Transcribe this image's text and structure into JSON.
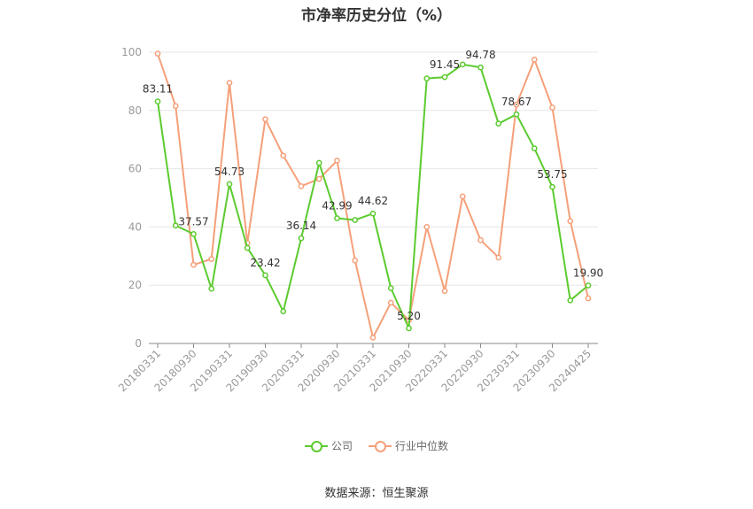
{
  "chart_data": {
    "type": "line",
    "title": "市净率历史分位（%）",
    "ylim": [
      0,
      100
    ],
    "yticks": [
      0,
      20,
      40,
      60,
      80,
      100
    ],
    "xtick_labels": [
      "20180331",
      "20180930",
      "20190331",
      "20190930",
      "20200331",
      "20200930",
      "20210331",
      "20210930",
      "20220331",
      "20220930",
      "20230331",
      "20230930",
      "20240425"
    ],
    "x": [
      "20180331",
      "20180630",
      "20180930",
      "20181231",
      "20190331",
      "20190630",
      "20190930",
      "20191231",
      "20200331",
      "20200630",
      "20200930",
      "20201231",
      "20210331",
      "20210630",
      "20210930",
      "20211231",
      "20220331",
      "20220630",
      "20220930",
      "20221231",
      "20230331",
      "20230630",
      "20230930",
      "20231231",
      "20240425"
    ],
    "series": [
      {
        "name": "公司",
        "color": "#5ccb2f",
        "values": [
          83.11,
          40.5,
          37.57,
          18.8,
          54.73,
          32.8,
          23.42,
          11.0,
          36.14,
          62.0,
          42.99,
          42.4,
          44.62,
          19.0,
          5.2,
          91.0,
          91.45,
          95.8,
          94.78,
          75.5,
          78.67,
          67.0,
          53.75,
          14.8,
          19.9
        ],
        "labels": {
          "0": "83.11",
          "2": "37.57",
          "4": "54.73",
          "6": "23.42",
          "8": "36.14",
          "10": "42.99",
          "12": "44.62",
          "14": "5.20",
          "16": "91.45",
          "18": "94.78",
          "20": "78.67",
          "22": "53.75",
          "24": "19.90"
        }
      },
      {
        "name": "行业中位数",
        "color": "#f5a07a",
        "values": [
          99.5,
          81.5,
          27.0,
          29.0,
          89.5,
          34.5,
          77.0,
          64.5,
          54.0,
          56.5,
          62.8,
          28.5,
          2.0,
          14.0,
          8.0,
          40.0,
          18.0,
          50.5,
          35.5,
          29.5,
          82.0,
          97.5,
          81.0,
          42.0,
          15.5
        ],
        "labels": {}
      }
    ],
    "grid": true,
    "legend": "bottom-center"
  },
  "legend_items": [
    {
      "label": "公司"
    },
    {
      "label": "行业中位数"
    }
  ],
  "source_text": "数据来源：恒生聚源",
  "colors": {
    "axis": "#888888",
    "grid": "#e6e6e6",
    "tick_text": "#999999",
    "label_text": "#333333"
  }
}
